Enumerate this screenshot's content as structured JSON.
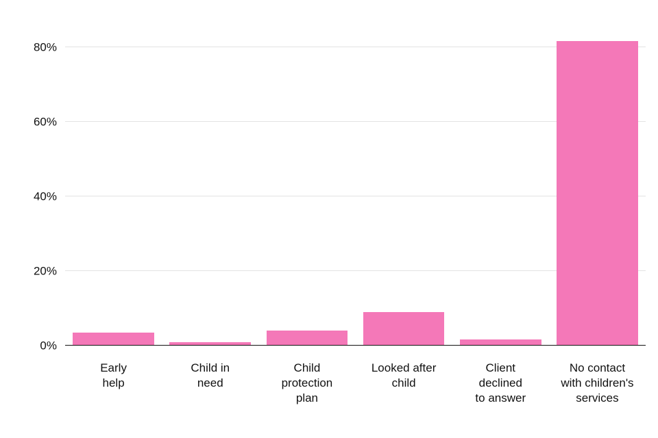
{
  "chart_data": {
    "type": "bar",
    "title": "",
    "xlabel": "",
    "ylabel": "",
    "categories": [
      "Early help",
      "Child in need",
      "Child protection plan",
      "Looked after child",
      "Client declined to answer",
      "No contact with children's services"
    ],
    "category_labels_multiline": [
      "Early\nhelp",
      "Child in\nneed",
      "Child\nprotection\nplan",
      "Looked after\nchild",
      "Client\ndeclined\nto answer",
      "No contact\nwith children's\nservices"
    ],
    "values": [
      3.5,
      1.0,
      4.0,
      9.0,
      1.7,
      81.5
    ],
    "unit": "%",
    "ylim": [
      0,
      90
    ],
    "yticks": [
      0,
      20,
      40,
      60,
      80
    ],
    "ytick_labels": [
      "0%",
      "20%",
      "40%",
      "60%",
      "80%"
    ],
    "grid": "horizontal-major",
    "legend": "none",
    "bar_color": "#F478B8",
    "axis_line_color": "#111111",
    "gridline_color": "#E3E3E3",
    "text_color": "#111111",
    "background_color": "#FFFFFF"
  }
}
